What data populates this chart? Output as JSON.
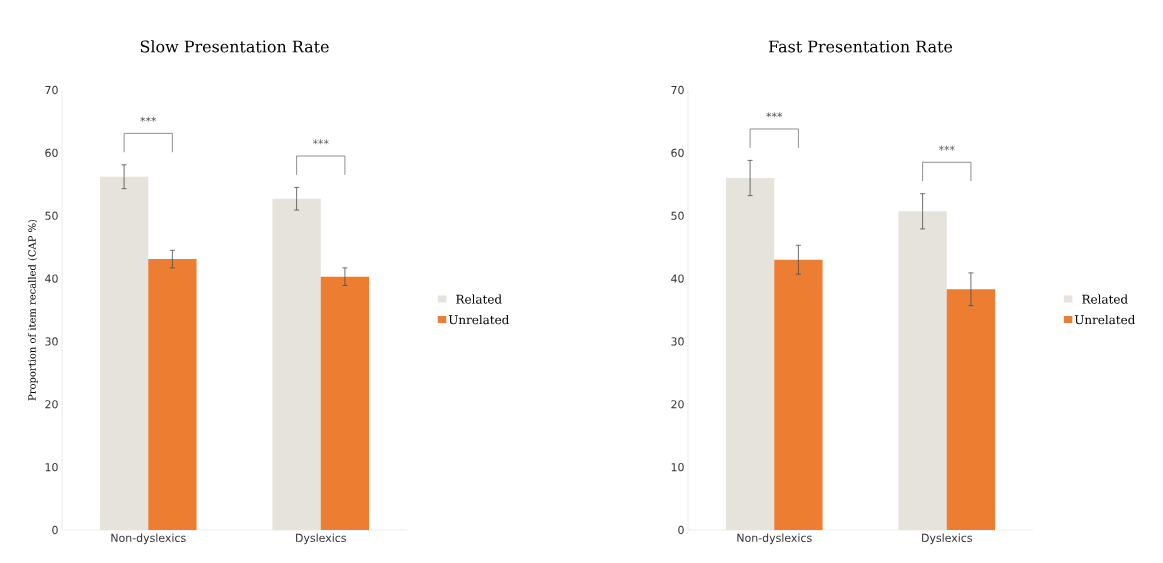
{
  "chart_data": [
    {
      "type": "bar",
      "title": "Slow Presentation Rate",
      "ylabel": "Proportion of item recalled (CAP %)",
      "categories": [
        "Non-dyslexics",
        "Dyslexics"
      ],
      "series": [
        {
          "name": "Related",
          "color": "#e6e3dd",
          "values": [
            56.2,
            52.7
          ],
          "errors": [
            1.9,
            1.8
          ]
        },
        {
          "name": "Unrelated",
          "color": "#ed7d31",
          "values": [
            43.1,
            40.3
          ],
          "errors": [
            1.4,
            1.4
          ]
        }
      ],
      "ylim": [
        0,
        70
      ],
      "yticks": [
        0,
        10,
        20,
        30,
        40,
        50,
        60,
        70
      ],
      "legend": "right",
      "annotations": [
        "***",
        "***"
      ]
    },
    {
      "type": "bar",
      "title": "Fast Presentation Rate",
      "categories": [
        "Non-dyslexics",
        "Dyslexics"
      ],
      "series": [
        {
          "name": "Related",
          "color": "#e6e3dd",
          "values": [
            56.0,
            50.7
          ],
          "errors": [
            2.8,
            2.8
          ]
        },
        {
          "name": "Unrelated",
          "color": "#ed7d31",
          "values": [
            43.0,
            38.3
          ],
          "errors": [
            2.3,
            2.6
          ]
        }
      ],
      "ylim": [
        0,
        70
      ],
      "yticks": [
        0,
        10,
        20,
        30,
        40,
        50,
        60,
        70
      ],
      "legend": "right",
      "annotations": [
        "***",
        "***"
      ]
    }
  ]
}
